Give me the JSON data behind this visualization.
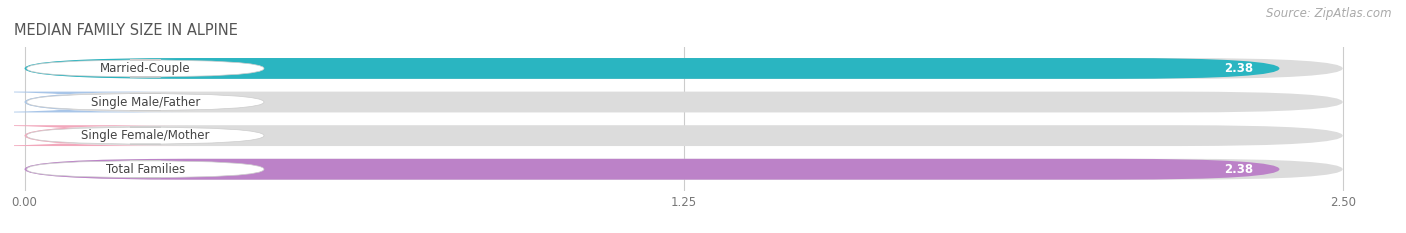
{
  "title": "MEDIAN FAMILY SIZE IN ALPINE",
  "source": "Source: ZipAtlas.com",
  "categories": [
    "Married-Couple",
    "Single Male/Father",
    "Single Female/Mother",
    "Total Families"
  ],
  "values": [
    2.38,
    0.0,
    0.0,
    2.38
  ],
  "bar_colors": [
    "#2ab5c1",
    "#a8c5e8",
    "#f2a8bc",
    "#bc82c8"
  ],
  "bar_bg_color": "#dcdcdc",
  "xlim_max": 2.5,
  "xticks": [
    0.0,
    1.25,
    2.5
  ],
  "xtick_labels": [
    "0.00",
    "1.25",
    "2.50"
  ],
  "background_color": "#ffffff",
  "bar_height": 0.62,
  "label_fontsize": 8.5,
  "value_fontsize": 8.5,
  "title_fontsize": 10.5,
  "source_fontsize": 8.5,
  "title_color": "#555555",
  "source_color": "#aaaaaa",
  "label_text_color": "#444444",
  "value_color_inside": "#ffffff",
  "value_color_outside": "#555555"
}
